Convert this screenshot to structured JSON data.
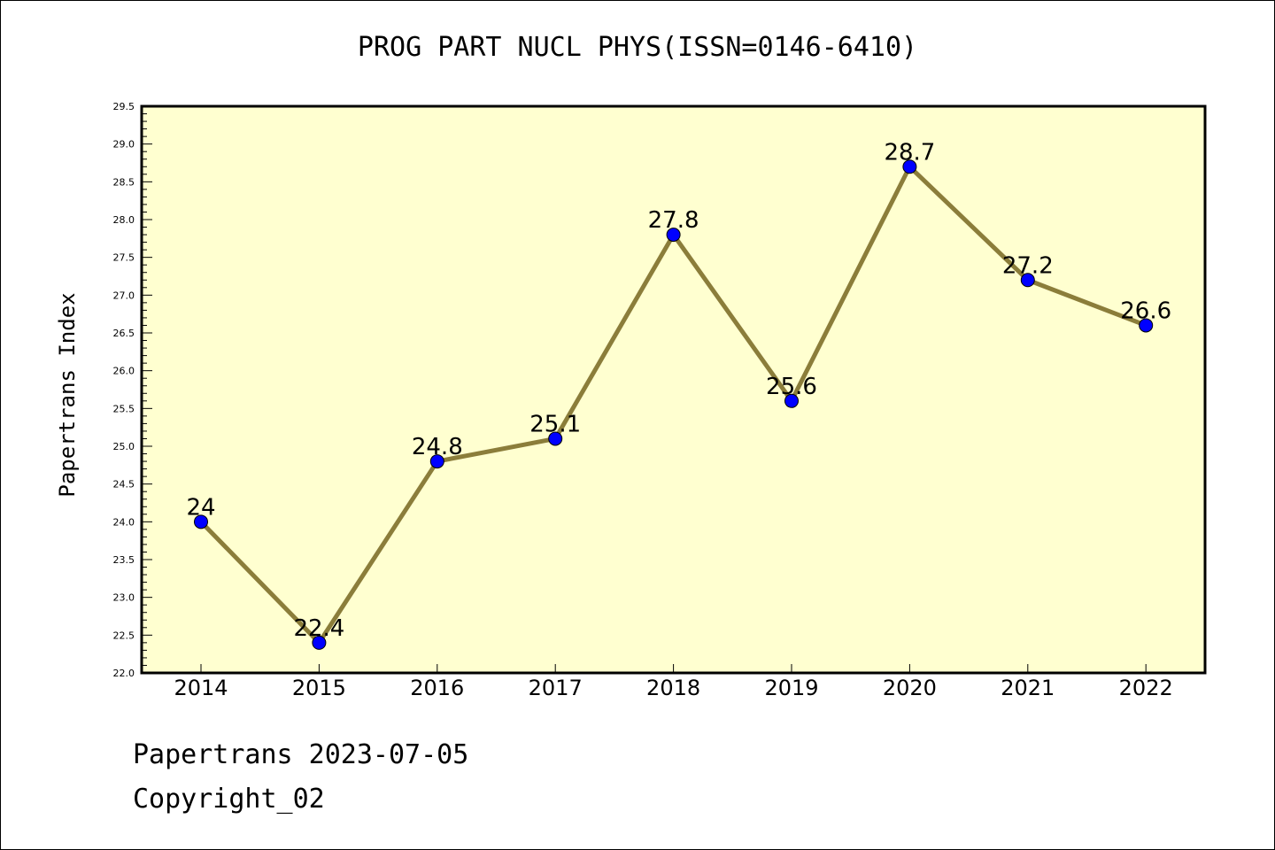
{
  "chart_data": {
    "type": "line",
    "title": "PROG PART NUCL PHYS(ISSN=0146-6410)",
    "xlabel": "",
    "ylabel": "Papertrans Index",
    "categories": [
      "2014",
      "2015",
      "2016",
      "2017",
      "2018",
      "2019",
      "2020",
      "2021",
      "2022"
    ],
    "series": [
      {
        "values": [
          24,
          22.4,
          24.8,
          25.1,
          27.8,
          25.6,
          28.7,
          27.2,
          26.6
        ],
        "data_labels": [
          "24",
          "22.4",
          "24.8",
          "25.1",
          "27.8",
          "25.6",
          "28.7",
          "27.2",
          "26.6"
        ],
        "line_color": "#8b7d3a",
        "marker_color": "#0000ff"
      }
    ],
    "ylim": [
      22.0,
      29.5
    ],
    "yticks": [
      "22.0",
      "22.5",
      "23.0",
      "23.5",
      "24.0",
      "24.5",
      "25.0",
      "25.5",
      "26.0",
      "26.5",
      "27.0",
      "27.5",
      "28.0",
      "28.5",
      "29.0",
      "29.5"
    ],
    "plot_background": "#ffffd0",
    "grid": false,
    "legend": "none"
  },
  "footer": {
    "date_line": "Papertrans 2023-07-05",
    "copyright_line": "Copyright_02"
  }
}
